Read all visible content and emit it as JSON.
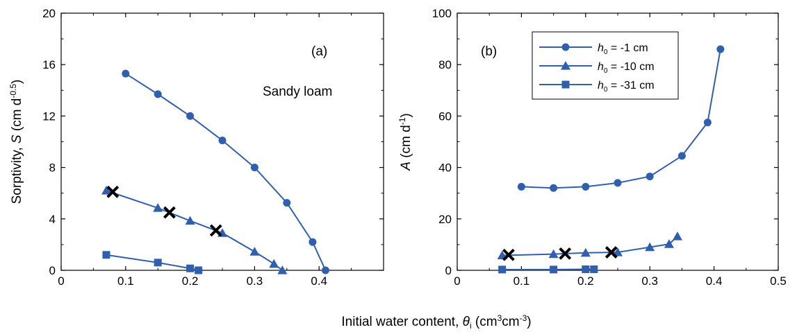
{
  "colors": {
    "series": "#2f5fad",
    "marker_x": "#000000",
    "axis": "#000000"
  },
  "shared_xlabel": {
    "prefix": "Initial water content, ",
    "symbol": "θ",
    "sub": "i",
    "units_pre": " (cm",
    "units_sup1": "3",
    "units_mid": "cm",
    "units_sup2": "-3",
    "units_post": ")"
  },
  "chart_data": [
    {
      "type": "line",
      "panel_label": "(a)",
      "annotation": "Sandy loam",
      "xlim": [
        0,
        0.5
      ],
      "ylim": [
        0,
        20
      ],
      "xticks": [
        0,
        0.1,
        0.2,
        0.3,
        0.4
      ],
      "xtick_labels": [
        "0",
        "0.1",
        "0.2",
        "0.3",
        "0.4"
      ],
      "yticks": [
        0,
        4,
        8,
        12,
        16,
        20
      ],
      "ytick_labels": [
        "0",
        "4",
        "8",
        "12",
        "16",
        "20"
      ],
      "ylabel": {
        "pre": "Sorptivity, ",
        "ital": "S",
        "mid": " (cm d",
        "sup": "-0.5",
        "post": ")"
      },
      "series": [
        {
          "marker": "circle",
          "x": [
            0.1,
            0.15,
            0.2,
            0.25,
            0.3,
            0.35,
            0.39,
            0.41
          ],
          "y": [
            15.3,
            13.7,
            12.0,
            10.1,
            8.0,
            5.25,
            2.2,
            0.0
          ]
        },
        {
          "marker": "triangle",
          "x": [
            0.07,
            0.15,
            0.2,
            0.25,
            0.3,
            0.33,
            0.343
          ],
          "y": [
            6.2,
            4.85,
            3.85,
            2.9,
            1.45,
            0.5,
            0.0
          ]
        },
        {
          "marker": "square",
          "x": [
            0.07,
            0.15,
            0.2,
            0.213
          ],
          "y": [
            1.2,
            0.6,
            0.15,
            0.0
          ]
        }
      ],
      "x_markers": {
        "x": [
          0.08,
          0.168,
          0.24
        ],
        "y": [
          6.1,
          4.5,
          3.1
        ]
      }
    },
    {
      "type": "line",
      "panel_label": "(b)",
      "xlim": [
        0,
        0.5
      ],
      "ylim": [
        0,
        100
      ],
      "xticks": [
        0,
        0.1,
        0.2,
        0.3,
        0.4,
        0.5
      ],
      "xtick_labels": [
        "0",
        "0.1",
        "0.2",
        "0.3",
        "0.4",
        "0.5"
      ],
      "yticks": [
        0,
        20,
        40,
        60,
        80,
        100
      ],
      "ytick_labels": [
        "0",
        "20",
        "40",
        "60",
        "80",
        "100"
      ],
      "ylabel": {
        "ital": "A",
        "mid": " (cm d",
        "sup": "-1",
        "post": ")"
      },
      "legend_position": "top-center",
      "series": [
        {
          "name": "h0 = -1 cm",
          "legend_ital": "h",
          "legend_sub": "0",
          "legend_rest": " = -1 cm",
          "marker": "circle",
          "x": [
            0.1,
            0.15,
            0.2,
            0.25,
            0.3,
            0.35,
            0.39,
            0.41
          ],
          "y": [
            32.5,
            32.0,
            32.5,
            34.0,
            36.5,
            44.5,
            57.5,
            86.0
          ]
        },
        {
          "name": "h0 = -10 cm",
          "legend_ital": "h",
          "legend_sub": "0",
          "legend_rest": " = -10 cm",
          "marker": "triangle",
          "x": [
            0.07,
            0.15,
            0.2,
            0.25,
            0.3,
            0.33,
            0.343
          ],
          "y": [
            5.8,
            6.3,
            6.8,
            7.0,
            9.0,
            10.2,
            13.2
          ]
        },
        {
          "name": "h0 = -31 cm",
          "legend_ital": "h",
          "legend_sub": "0",
          "legend_rest": " = -31 cm",
          "marker": "square",
          "x": [
            0.07,
            0.15,
            0.2,
            0.213
          ],
          "y": [
            0.3,
            0.3,
            0.4,
            0.4
          ]
        }
      ],
      "x_markers": {
        "x": [
          0.08,
          0.168,
          0.24
        ],
        "y": [
          6.0,
          6.5,
          7.0
        ]
      }
    }
  ]
}
